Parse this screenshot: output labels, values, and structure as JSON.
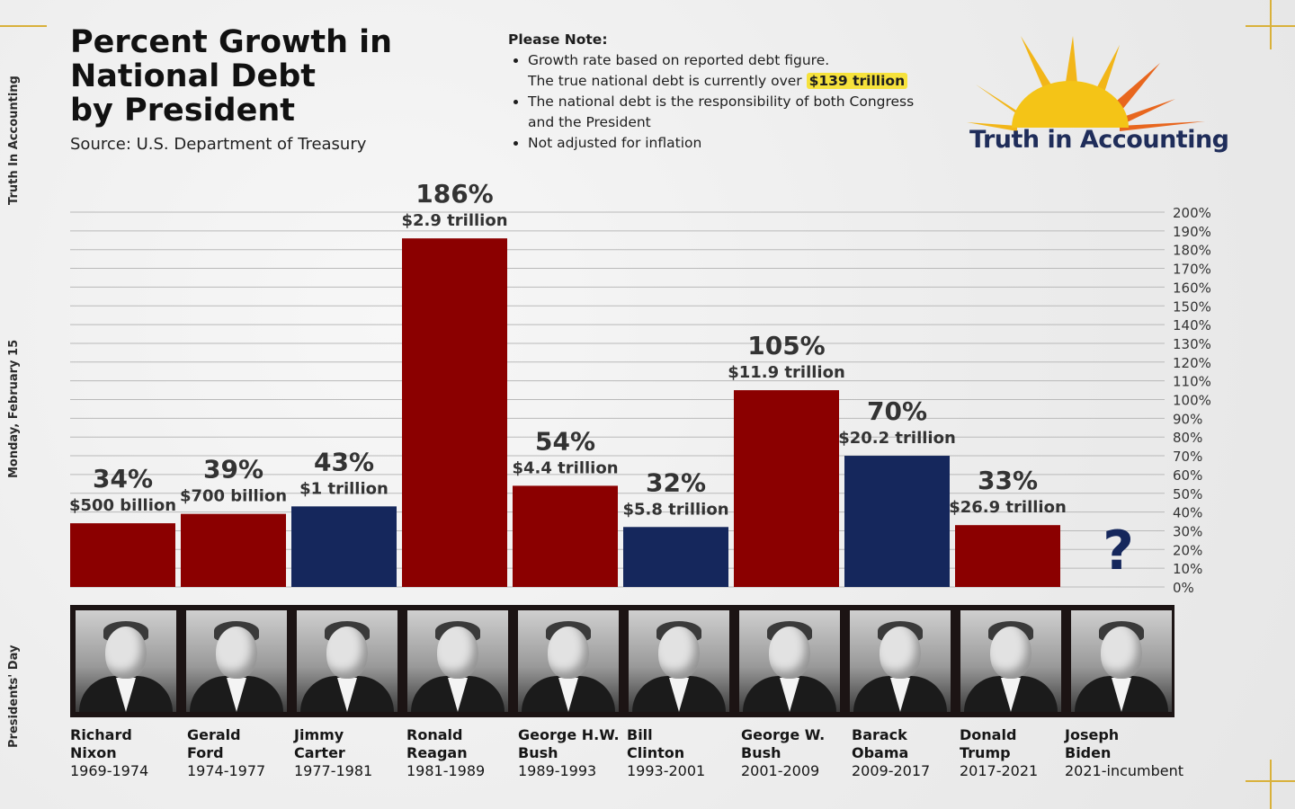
{
  "side_labels": {
    "top": "Truth In Accounting",
    "middle": "Monday, February 15",
    "bottom": "Presidents' Day"
  },
  "header": {
    "title_lines": [
      "Percent Growth in",
      "National Debt",
      "by President"
    ],
    "source": "Source: U.S. Department of Treasury"
  },
  "note": {
    "heading": "Please Note:",
    "line1": "Growth rate based on reported debt figure.",
    "line2_prefix": "The true national debt is currently over ",
    "line2_highlight": "$139 trillion",
    "line3": "The national debt is the responsibility of both Congress and the President",
    "line4": "Not adjusted for inflation"
  },
  "logo": {
    "text": "Truth in Accounting"
  },
  "colors": {
    "republican": "#8b0000",
    "democrat": "#15275c",
    "highlight": "#f6e23c",
    "logo_navy": "#1f2d5a"
  },
  "chart_data": {
    "type": "bar",
    "categories": [
      "Richard Nixon",
      "Gerald Ford",
      "Jimmy Carter",
      "Ronald Reagan",
      "George H.W. Bush",
      "Bill Clinton",
      "George W. Bush",
      "Barack Obama",
      "Donald Trump",
      "Joseph Biden"
    ],
    "values": [
      34,
      39,
      43,
      186,
      54,
      32,
      105,
      70,
      33,
      null
    ],
    "value_labels": [
      "34%",
      "39%",
      "43%",
      "186%",
      "54%",
      "32%",
      "105%",
      "70%",
      "33%",
      "?"
    ],
    "debt_labels": [
      "$500 billion",
      "$700 billion",
      "$1 trillion",
      "$2.9 trillion",
      "$4.4 trillion",
      "$5.8 trillion",
      "$11.9 trillion",
      "$20.2 trillion",
      "$26.9 trillion",
      ""
    ],
    "party_colors": [
      "#8b0000",
      "#8b0000",
      "#15275c",
      "#8b0000",
      "#8b0000",
      "#15275c",
      "#8b0000",
      "#15275c",
      "#8b0000",
      "#15275c"
    ],
    "ylim": [
      0,
      200
    ],
    "y_ticks": [
      "0%",
      "10%",
      "20%",
      "30%",
      "40%",
      "50%",
      "60%",
      "70%",
      "80%",
      "90%",
      "100%",
      "110%",
      "120%",
      "130%",
      "140%",
      "150%",
      "160%",
      "170%",
      "180%",
      "190%",
      "200%"
    ],
    "grid": true,
    "yaxis_side": "right"
  },
  "presidents": [
    {
      "first": "Richard",
      "last": "Nixon",
      "years": "1969-1974"
    },
    {
      "first": "Gerald",
      "last": "Ford",
      "years": "1974-1977"
    },
    {
      "first": "Jimmy",
      "last": "Carter",
      "years": "1977-1981"
    },
    {
      "first": "Ronald",
      "last": "Reagan",
      "years": "1981-1989"
    },
    {
      "first": "George H.W.",
      "last": "Bush",
      "years": "1989-1993"
    },
    {
      "first": "Bill",
      "last": "Clinton",
      "years": "1993-2001"
    },
    {
      "first": "George W.",
      "last": "Bush",
      "years": "2001-2009"
    },
    {
      "first": "Barack",
      "last": "Obama",
      "years": "2009-2017"
    },
    {
      "first": "Donald",
      "last": "Trump",
      "years": "2017-2021"
    },
    {
      "first": "Joseph",
      "last": "Biden",
      "years": "2021-incumbent"
    }
  ]
}
